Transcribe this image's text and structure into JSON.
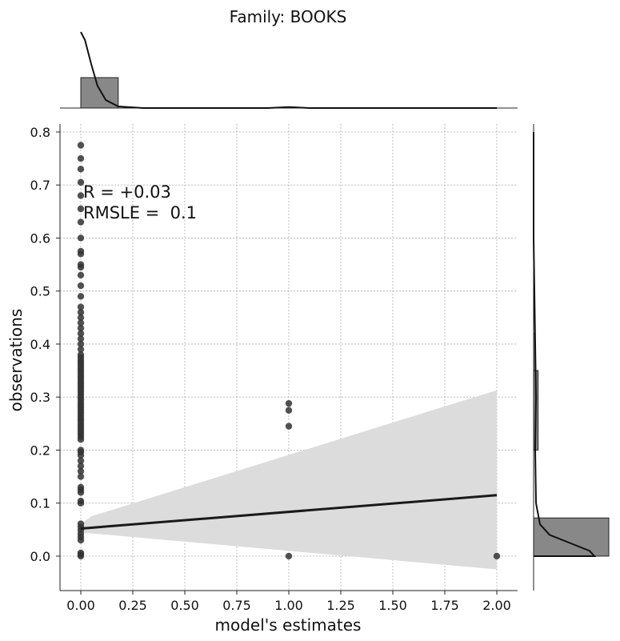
{
  "chart_data": {
    "type": "scatter",
    "title": "Family: BOOKS",
    "xlabel": "model's estimates",
    "ylabel": "observations",
    "xlim": [
      -0.1,
      2.1
    ],
    "ylim": [
      -0.065,
      0.815
    ],
    "x_ticks": [
      "0.00",
      "0.25",
      "0.50",
      "0.75",
      "1.00",
      "1.25",
      "1.50",
      "1.75",
      "2.00"
    ],
    "x_tick_values": [
      0,
      0.25,
      0.5,
      0.75,
      1.0,
      1.25,
      1.5,
      1.75,
      2.0
    ],
    "y_ticks": [
      "0.0",
      "0.1",
      "0.2",
      "0.3",
      "0.4",
      "0.5",
      "0.6",
      "0.7",
      "0.8"
    ],
    "y_tick_values": [
      0,
      0.1,
      0.2,
      0.3,
      0.4,
      0.5,
      0.6,
      0.7,
      0.8
    ],
    "grid": true,
    "annotations": [
      "R = +0.03",
      "RMSLE =  0.1"
    ],
    "points": [
      {
        "x": 0,
        "y": 0.0
      },
      {
        "x": 0,
        "y": 0.003
      },
      {
        "x": 0,
        "y": 0.006
      },
      {
        "x": 0,
        "y": 0.03
      },
      {
        "x": 0,
        "y": 0.036
      },
      {
        "x": 0,
        "y": 0.042
      },
      {
        "x": 0,
        "y": 0.049
      },
      {
        "x": 0,
        "y": 0.055
      },
      {
        "x": 0,
        "y": 0.061
      },
      {
        "x": 0,
        "y": 0.1
      },
      {
        "x": 0,
        "y": 0.104
      },
      {
        "x": 0,
        "y": 0.12
      },
      {
        "x": 0,
        "y": 0.125
      },
      {
        "x": 0,
        "y": 0.13
      },
      {
        "x": 0,
        "y": 0.15
      },
      {
        "x": 0,
        "y": 0.16
      },
      {
        "x": 0,
        "y": 0.17
      },
      {
        "x": 0,
        "y": 0.18
      },
      {
        "x": 0,
        "y": 0.19
      },
      {
        "x": 0,
        "y": 0.196
      },
      {
        "x": 0,
        "y": 0.2
      },
      {
        "x": 0,
        "y": 0.22
      },
      {
        "x": 0,
        "y": 0.225
      },
      {
        "x": 0,
        "y": 0.23
      },
      {
        "x": 0,
        "y": 0.235
      },
      {
        "x": 0,
        "y": 0.24
      },
      {
        "x": 0,
        "y": 0.245
      },
      {
        "x": 0,
        "y": 0.25
      },
      {
        "x": 0,
        "y": 0.255
      },
      {
        "x": 0,
        "y": 0.26
      },
      {
        "x": 0,
        "y": 0.265
      },
      {
        "x": 0,
        "y": 0.27
      },
      {
        "x": 0,
        "y": 0.275
      },
      {
        "x": 0,
        "y": 0.28
      },
      {
        "x": 0,
        "y": 0.285
      },
      {
        "x": 0,
        "y": 0.29
      },
      {
        "x": 0,
        "y": 0.295
      },
      {
        "x": 0,
        "y": 0.3
      },
      {
        "x": 0,
        "y": 0.305
      },
      {
        "x": 0,
        "y": 0.31
      },
      {
        "x": 0,
        "y": 0.315
      },
      {
        "x": 0,
        "y": 0.32
      },
      {
        "x": 0,
        "y": 0.325
      },
      {
        "x": 0,
        "y": 0.33
      },
      {
        "x": 0,
        "y": 0.335
      },
      {
        "x": 0,
        "y": 0.34
      },
      {
        "x": 0,
        "y": 0.345
      },
      {
        "x": 0,
        "y": 0.35
      },
      {
        "x": 0,
        "y": 0.355
      },
      {
        "x": 0,
        "y": 0.36
      },
      {
        "x": 0,
        "y": 0.365
      },
      {
        "x": 0,
        "y": 0.37
      },
      {
        "x": 0,
        "y": 0.375
      },
      {
        "x": 0,
        "y": 0.38
      },
      {
        "x": 0,
        "y": 0.39
      },
      {
        "x": 0,
        "y": 0.4
      },
      {
        "x": 0,
        "y": 0.41
      },
      {
        "x": 0,
        "y": 0.42
      },
      {
        "x": 0,
        "y": 0.43
      },
      {
        "x": 0,
        "y": 0.44
      },
      {
        "x": 0,
        "y": 0.45
      },
      {
        "x": 0,
        "y": 0.46
      },
      {
        "x": 0,
        "y": 0.47
      },
      {
        "x": 0,
        "y": 0.49
      },
      {
        "x": 0,
        "y": 0.51
      },
      {
        "x": 0,
        "y": 0.53
      },
      {
        "x": 0,
        "y": 0.545
      },
      {
        "x": 0,
        "y": 0.55
      },
      {
        "x": 0,
        "y": 0.57
      },
      {
        "x": 0,
        "y": 0.575
      },
      {
        "x": 0,
        "y": 0.6
      },
      {
        "x": 0,
        "y": 0.63
      },
      {
        "x": 0,
        "y": 0.655
      },
      {
        "x": 0,
        "y": 0.68
      },
      {
        "x": 0,
        "y": 0.705
      },
      {
        "x": 0,
        "y": 0.73
      },
      {
        "x": 0,
        "y": 0.75
      },
      {
        "x": 0,
        "y": 0.775
      },
      {
        "x": 1,
        "y": 0.0
      },
      {
        "x": 1,
        "y": 0.245
      },
      {
        "x": 1,
        "y": 0.275
      },
      {
        "x": 1,
        "y": 0.288
      },
      {
        "x": 2,
        "y": 0.0
      }
    ],
    "regression_line": {
      "x": [
        0,
        2
      ],
      "y": [
        0.052,
        0.115
      ]
    },
    "confidence_band": {
      "x": [
        0,
        0.05,
        2.0
      ],
      "upper": [
        0.06,
        0.075,
        0.313
      ],
      "lower": [
        0.044,
        0.043,
        -0.025
      ]
    },
    "top_histogram": {
      "bins": [
        [
          0.0,
          0.18
        ]
      ],
      "counts": [
        1.0
      ]
    },
    "right_histogram": {
      "bins": [
        [
          -0.0,
          0.072
        ],
        [
          0.2,
          0.35
        ],
        [
          0.35,
          0.42
        ]
      ],
      "counts": [
        1.0,
        0.06,
        0.02
      ]
    },
    "colors": {
      "points": "#333333",
      "line": "#1a1a1a",
      "band": "#dcdcdc",
      "hist": "#888888",
      "grid": "#b0b0b0"
    }
  }
}
